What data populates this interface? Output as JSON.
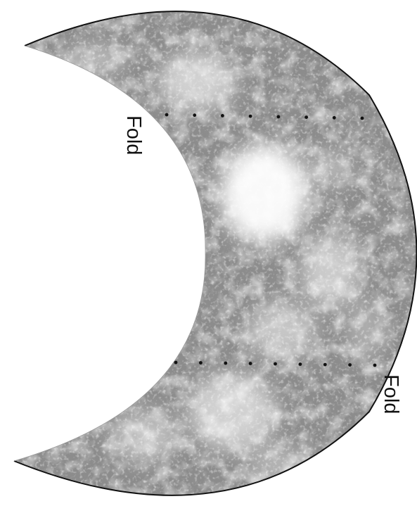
{
  "diagram": {
    "fold_labels": [
      "Fold",
      "Fold"
    ],
    "fold_line_count": 2,
    "colors": {
      "band_base": "#8c8c8c",
      "band_outline": "#111111",
      "highlight": "#ffffff",
      "fold_dots": "#111111",
      "label": "#111111"
    }
  }
}
